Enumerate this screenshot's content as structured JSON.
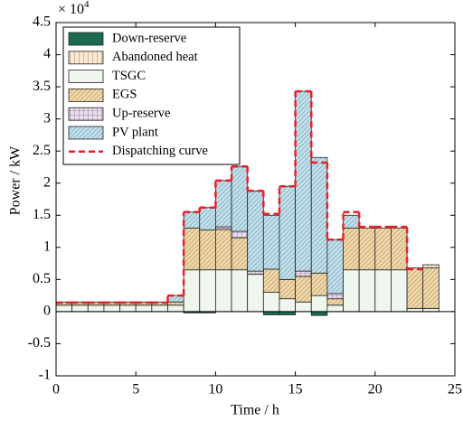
{
  "chart_data": {
    "type": "stacked-bar",
    "x_label": "Time / h",
    "y_label": "Power / kW",
    "y_multiplier": {
      "base": "× 10",
      "exponent": "4"
    },
    "x": [
      0,
      1,
      2,
      3,
      4,
      5,
      6,
      7,
      8,
      9,
      10,
      11,
      12,
      13,
      14,
      15,
      16,
      17,
      18,
      19,
      20,
      21,
      22,
      23
    ],
    "xlim": [
      0,
      25
    ],
    "xticks": [
      0,
      5,
      10,
      15,
      20,
      25
    ],
    "ylim": [
      -1,
      4.5
    ],
    "yticks": [
      -1,
      -0.5,
      0,
      0.5,
      1,
      1.5,
      2,
      2.5,
      3,
      3.5,
      4,
      4.5
    ],
    "legend_position": "upper left",
    "series": [
      {
        "name": "Down-reserve",
        "color": "#1a6b4f",
        "hatch": "none",
        "values": [
          0,
          0,
          0,
          0,
          0,
          0,
          0,
          0,
          -0.02,
          -0.02,
          0,
          0,
          0,
          -0.05,
          -0.05,
          0,
          -0.06,
          0,
          0,
          0,
          0,
          0,
          0,
          0
        ]
      },
      {
        "name": "Abandoned heat",
        "color": "#fde8cf",
        "hatch": "vertical",
        "values": [
          0,
          0,
          0,
          0,
          0,
          0,
          0,
          0,
          0,
          0,
          0,
          0,
          0,
          0,
          0,
          0,
          0,
          0,
          0,
          0,
          0,
          0,
          0,
          0.05
        ]
      },
      {
        "name": "TSGC",
        "color": "#eef6ee",
        "hatch": "none",
        "values": [
          0.1,
          0.1,
          0.1,
          0.1,
          0.1,
          0.1,
          0.1,
          0.1,
          0.65,
          0.65,
          0.65,
          0.65,
          0.58,
          0.3,
          0.2,
          0.15,
          0.25,
          0.1,
          0.65,
          0.65,
          0.65,
          0.65,
          0.05,
          0.05
        ]
      },
      {
        "name": "EGS",
        "color": "#f3d8a6",
        "hatch": "diagonal",
        "values": [
          0.05,
          0.05,
          0.05,
          0.05,
          0.05,
          0.05,
          0.05,
          0.05,
          0.65,
          0.62,
          0.63,
          0.5,
          0,
          0.36,
          0.3,
          0.4,
          0.35,
          0.1,
          0.65,
          0.65,
          0.65,
          0.65,
          0.63,
          0.63
        ]
      },
      {
        "name": "Up-reserve",
        "color": "#ecdcef",
        "hatch": "grid",
        "values": [
          0,
          0,
          0,
          0,
          0,
          0,
          0,
          0,
          0,
          0,
          0.04,
          0.1,
          0.05,
          0,
          0,
          0.08,
          0,
          0.08,
          0,
          0,
          0,
          0,
          0,
          0
        ]
      },
      {
        "name": "PV plant",
        "color": "#bfe1ee",
        "hatch": "diagonal",
        "values": [
          0,
          0,
          0,
          0,
          0,
          0,
          0,
          0.1,
          0.25,
          0.35,
          0.72,
          1.01,
          1.25,
          0.84,
          1.45,
          2.8,
          1.8,
          0.84,
          0.2,
          0,
          0,
          0,
          0,
          0
        ]
      },
      {
        "name": "Dispatching curve",
        "color": "#e8202a",
        "type": "step",
        "values": [
          0.14,
          0.14,
          0.14,
          0.14,
          0.14,
          0.14,
          0.14,
          0.25,
          1.55,
          1.62,
          2.04,
          2.26,
          1.88,
          1.52,
          1.95,
          3.43,
          2.32,
          1.12,
          1.55,
          1.32,
          1.32,
          1.32,
          0.66,
          null
        ]
      }
    ]
  }
}
